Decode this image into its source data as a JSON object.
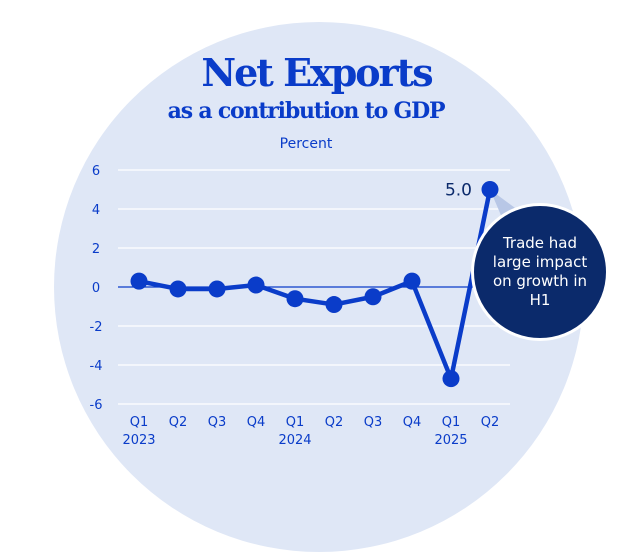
{
  "colors": {
    "backdrop": "#dfe7f6",
    "accent": "#0a3cc9",
    "callout": "#0b2a6b"
  },
  "chart_data": {
    "type": "line",
    "title": "Net Exports",
    "subtitle": "as a contribution to GDP",
    "ylabel": "Percent",
    "xlabel": "",
    "ylim": [
      -6,
      6
    ],
    "yticks": [
      6,
      4,
      2,
      0,
      -2,
      -4,
      -6
    ],
    "ytick_labels": [
      "6",
      "4",
      "2",
      "0",
      "-2",
      "-4",
      "-6"
    ],
    "grid": true,
    "categories": [
      "Q1",
      "Q2",
      "Q3",
      "Q4",
      "Q1",
      "Q2",
      "Q3",
      "Q4",
      "Q1",
      "Q2"
    ],
    "year_labels": [
      "2023",
      "",
      "",
      "",
      "2024",
      "",
      "",
      "",
      "2025",
      ""
    ],
    "series": [
      {
        "values": [
          0.3,
          -0.1,
          -0.1,
          0.1,
          -0.6,
          -0.9,
          -0.5,
          0.3,
          -4.7,
          5.0
        ]
      }
    ],
    "point_label": {
      "index": 9,
      "text": "5.0"
    },
    "annotation": "Trade had large impact on growth in H1"
  }
}
